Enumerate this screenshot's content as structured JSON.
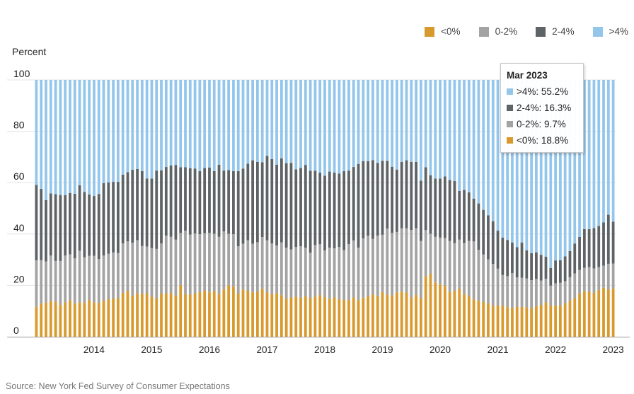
{
  "chart_data": {
    "type": "bar",
    "stacked": true,
    "ylabel": "Percent",
    "ylim": [
      0,
      100
    ],
    "y_ticks": [
      0,
      20,
      40,
      60,
      80,
      100
    ],
    "x_tick_labels": [
      "2014",
      "2015",
      "2016",
      "2017",
      "2018",
      "2019",
      "2020",
      "2021",
      "2022",
      "2023"
    ],
    "categories_note": "Monthly, Jun 2013 - Mar 2023",
    "series": [
      {
        "name": "<0%",
        "color": "#d89a2e",
        "values": [
          11.6,
          12.9,
          13.3,
          13.9,
          13.6,
          12.3,
          13.4,
          14.3,
          12.9,
          13.4,
          13.2,
          14.3,
          13.4,
          13.2,
          14.0,
          14.6,
          14.9,
          15.0,
          17.1,
          17.9,
          16.0,
          17.0,
          16.6,
          16.8,
          15.6,
          14.9,
          16.8,
          16.8,
          17.0,
          16.0,
          20.0,
          16.6,
          16.4,
          16.8,
          17.4,
          17.9,
          17.3,
          17.8,
          16.5,
          18.4,
          20.0,
          19.5,
          16.8,
          18.4,
          17.9,
          17.3,
          17.5,
          18.7,
          17.2,
          16.6,
          17.0,
          16.2,
          14.8,
          15.3,
          15.6,
          15.2,
          15.8,
          15.0,
          15.6,
          16.2,
          15.3,
          14.7,
          15.3,
          14.7,
          14.3,
          14.3,
          15.3,
          14.2,
          15.2,
          15.7,
          16.5,
          15.8,
          17.4,
          16.4,
          16.1,
          17.3,
          17.6,
          17.2,
          15.3,
          16.3,
          15.0,
          23.5,
          24.5,
          21.1,
          20.3,
          19.8,
          17.4,
          17.9,
          18.6,
          16.6,
          15.7,
          14.5,
          14.0,
          13.5,
          12.9,
          12.0,
          12.2,
          12.1,
          11.5,
          11.2,
          11.7,
          11.6,
          11.5,
          11.0,
          11.9,
          12.4,
          13.4,
          12.1,
          12.2,
          12.1,
          13.0,
          14.0,
          15.0,
          16.9,
          17.7,
          17.5,
          17.1,
          18.2,
          19.1,
          18.3,
          18.8
        ]
      },
      {
        "name": "0-2%",
        "color": "#a3a3a3",
        "values": [
          18.1,
          16.9,
          16.0,
          17.7,
          15.9,
          17.2,
          18.2,
          17.8,
          17.6,
          20.1,
          17.7,
          17.2,
          18.1,
          17.1,
          17.6,
          17.7,
          17.9,
          17.6,
          19.2,
          19.2,
          20.6,
          20.6,
          18.7,
          18.3,
          18.9,
          19.3,
          19.5,
          22.6,
          21.9,
          21.8,
          20.4,
          24.7,
          23.4,
          23.4,
          22.5,
          22.4,
          23.2,
          22.3,
          22.4,
          22.6,
          20.1,
          20.4,
          18.4,
          17.8,
          19.7,
          18.9,
          19.3,
          20.1,
          20.4,
          19.7,
          18.5,
          20.5,
          19.9,
          18.7,
          19.3,
          20.0,
          18.9,
          17.7,
          20.1,
          19.8,
          18.3,
          20.0,
          19.1,
          20.2,
          19.4,
          21.8,
          22.2,
          20.5,
          23.1,
          23.6,
          21.6,
          23.6,
          22.3,
          25.7,
          24.3,
          23.5,
          24.6,
          25.0,
          26.3,
          25.9,
          22.3,
          18.0,
          15.6,
          17.8,
          18.3,
          18.6,
          19.9,
          18.6,
          19.2,
          19.9,
          21.6,
          22.6,
          19.8,
          18.5,
          17.2,
          16.3,
          14.3,
          11.9,
          12.1,
          13.6,
          11.4,
          11.4,
          11.2,
          11.0,
          10.6,
          9.5,
          9.2,
          7.8,
          8.6,
          8.9,
          8.6,
          9.2,
          9.6,
          9.1,
          9.1,
          9.6,
          9.5,
          8.9,
          8.6,
          10.1,
          9.7
        ]
      },
      {
        "name": "2-4%",
        "color": "#5e6366",
        "values": [
          29.4,
          27.8,
          23.9,
          24.2,
          26.0,
          25.7,
          23.5,
          23.9,
          25.2,
          25.5,
          25.5,
          23.9,
          23.3,
          25.3,
          28.2,
          27.8,
          27.5,
          27.7,
          26.8,
          27.0,
          28.4,
          27.7,
          29.2,
          26.5,
          27.1,
          30.5,
          28.5,
          26.7,
          27.8,
          29.1,
          25.6,
          24.7,
          25.8,
          25.3,
          24.6,
          25.4,
          25.4,
          24.4,
          28.1,
          23.7,
          24.8,
          24.6,
          29.3,
          29.3,
          29.8,
          32.5,
          31.3,
          29.1,
          32.8,
          32.9,
          31.5,
          32.8,
          32.9,
          33.7,
          30.3,
          30.5,
          32.2,
          31.9,
          28.9,
          27.9,
          29.1,
          29.6,
          29.5,
          28.6,
          30.8,
          28.6,
          28.6,
          32.6,
          30.1,
          29.1,
          30.7,
          28.3,
          28.8,
          26.4,
          25.8,
          24.3,
          25.9,
          26.5,
          26.5,
          25.9,
          23.5,
          24.5,
          22.8,
          22.7,
          23.0,
          24.0,
          23.7,
          24.1,
          19.0,
          20.7,
          18.9,
          16.7,
          18.1,
          17.4,
          17.2,
          16.7,
          14.8,
          14.6,
          14.1,
          11.9,
          11.8,
          13.7,
          10.9,
          10.5,
          10.3,
          10.0,
          8.6,
          6.9,
          8.9,
          8.8,
          9.7,
          10.2,
          11.7,
          12.9,
          15.1,
          14.8,
          15.7,
          16.0,
          16.8,
          19.1,
          16.3
        ]
      },
      {
        "name": ">4%",
        "color": "#94c6ec",
        "values": [
          40.9,
          42.4,
          46.8,
          44.2,
          44.5,
          44.8,
          44.9,
          44.0,
          44.3,
          41.0,
          43.6,
          44.6,
          45.2,
          44.4,
          40.2,
          39.9,
          39.7,
          39.7,
          36.9,
          35.9,
          35.0,
          34.7,
          35.5,
          38.4,
          38.4,
          35.3,
          35.2,
          33.9,
          33.3,
          33.1,
          34.0,
          34.0,
          34.4,
          34.5,
          35.5,
          34.3,
          34.1,
          35.5,
          33.0,
          35.3,
          35.1,
          35.5,
          35.5,
          34.5,
          32.6,
          31.3,
          31.9,
          32.1,
          29.6,
          30.8,
          33.0,
          30.5,
          32.4,
          32.3,
          34.8,
          34.3,
          33.1,
          35.4,
          35.4,
          36.1,
          37.3,
          35.7,
          36.1,
          36.5,
          35.5,
          35.3,
          33.9,
          32.7,
          31.6,
          31.6,
          31.2,
          32.3,
          31.5,
          31.5,
          33.8,
          34.9,
          31.9,
          31.3,
          31.9,
          31.9,
          39.2,
          34.0,
          37.1,
          38.4,
          38.4,
          37.6,
          39.0,
          39.4,
          43.2,
          42.8,
          43.8,
          46.2,
          48.1,
          50.6,
          52.7,
          55.0,
          58.7,
          61.4,
          62.3,
          63.3,
          65.1,
          63.3,
          66.4,
          67.5,
          67.2,
          68.1,
          68.8,
          73.2,
          70.3,
          70.2,
          68.7,
          66.6,
          63.7,
          61.1,
          58.1,
          58.1,
          57.7,
          56.9,
          55.5,
          52.5,
          55.2
        ]
      }
    ],
    "x_ticks_align": "mid-year bars",
    "tooltip": {
      "title": "Mar 2023",
      "rows": [
        {
          "label": ">4%: 55.2%",
          "color": "#94c6ec"
        },
        {
          "label": "2-4%: 16.3%",
          "color": "#5e6366"
        },
        {
          "label": "0-2%: 9.7%",
          "color": "#a3a3a3"
        },
        {
          "label": "<0%: 18.8%",
          "color": "#d89a2e"
        }
      ]
    }
  },
  "legend": [
    {
      "label": "<0%",
      "color": "#d89a2e"
    },
    {
      "label": "0-2%",
      "color": "#a3a3a3"
    },
    {
      "label": "2-4%",
      "color": "#5e6366"
    },
    {
      "label": ">4%",
      "color": "#94c6ec"
    }
  ],
  "source": "Source: New York Fed Survey of Consumer Expectations"
}
